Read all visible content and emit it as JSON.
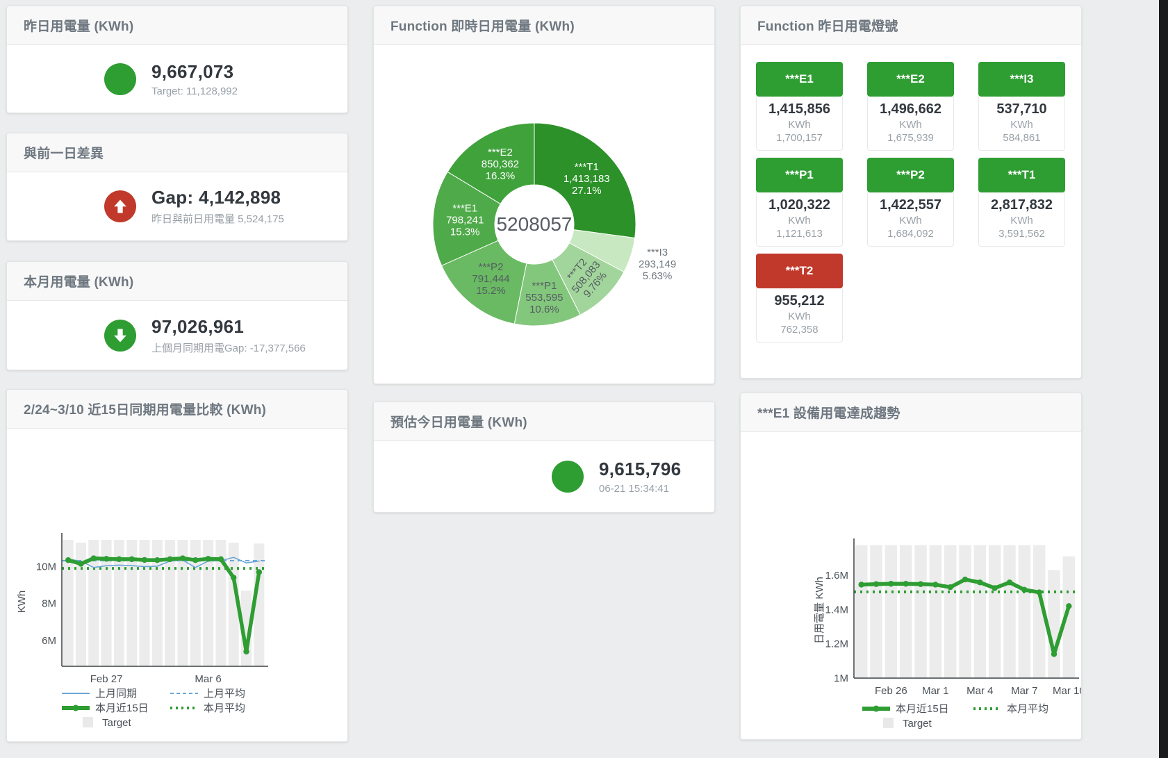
{
  "page": {
    "background": "#ecedee",
    "scrollbar_color": "#191b1d"
  },
  "colors": {
    "green": "#2e9d32",
    "red": "#c0392b",
    "blue": "#6ba7d7",
    "target_bar": "#ececec",
    "value_text": "#32383e",
    "sub_text": "#98a0a6"
  },
  "stats": {
    "yesterday": {
      "title": "昨日用電量 (KWh)",
      "value": "9,667,073",
      "subtitle": "Target: 11,128,992",
      "icon": "green-circle"
    },
    "diff": {
      "title": "與前一日差異",
      "value": "Gap: 4,142,898",
      "subtitle": "昨日與前日用電量 5,524,175",
      "icon": "red-arrow-up"
    },
    "month": {
      "title": "本月用電量 (KWh)",
      "value": "97,026,961",
      "subtitle": "上個月同期用電Gap: -17,377,566",
      "icon": "green-arrow-down"
    },
    "estimate": {
      "title": "預估今日用電量 (KWh)",
      "value": "9,615,796",
      "subtitle": "06-21 15:34:41",
      "icon": "green-circle"
    }
  },
  "lights": {
    "title": "Function 昨日用電燈號",
    "status_colors": {
      "green": "#2e9d32",
      "red": "#c0392b"
    },
    "tiles": [
      {
        "label": "***E1",
        "value": "1,415,856",
        "unit": "KWh",
        "target": "1,700,157",
        "status": "green"
      },
      {
        "label": "***E2",
        "value": "1,496,662",
        "unit": "KWh",
        "target": "1,675,939",
        "status": "green"
      },
      {
        "label": "***I3",
        "value": "537,710",
        "unit": "KWh",
        "target": "584,861",
        "status": "green"
      },
      {
        "label": "***P1",
        "value": "1,020,322",
        "unit": "KWh",
        "target": "1,121,613",
        "status": "green"
      },
      {
        "label": "***P2",
        "value": "1,422,557",
        "unit": "KWh",
        "target": "1,684,092",
        "status": "green"
      },
      {
        "label": "***T1",
        "value": "2,817,832",
        "unit": "KWh",
        "target": "3,591,562",
        "status": "green"
      },
      {
        "label": "***T2",
        "value": "955,212",
        "unit": "KWh",
        "target": "762,358",
        "status": "red"
      }
    ]
  },
  "chart_data": [
    {
      "type": "pie",
      "title": "Function 即時日用電量 (KWh)",
      "center_total": "5208057",
      "slices": [
        {
          "label": "***T1",
          "value": 1413183,
          "pct": "27.1%",
          "color": "#2b9128",
          "text_color": "#ffffff",
          "label_radius": 100
        },
        {
          "label": "***I3",
          "value": 293149,
          "pct": "5.63%",
          "color": "#c7e8c0",
          "text_color": "#70797f",
          "label_radius": 186
        },
        {
          "label": "***T2",
          "value": 508083,
          "pct": "9.76%",
          "color": "#a2d59b",
          "text_color": "#555d63",
          "label_radius": 106,
          "label_rotate": -50
        },
        {
          "label": "***P1",
          "value": 553595,
          "pct": "10.6%",
          "color": "#83c77c",
          "text_color": "#555d63",
          "label_radius": 106
        },
        {
          "label": "***P2",
          "value": 791444,
          "pct": "15.2%",
          "color": "#69ba62",
          "text_color": "#555d63",
          "label_radius": 100
        },
        {
          "label": "***E1",
          "value": 798241,
          "pct": "15.3%",
          "color": "#4faa49",
          "text_color": "#ffffff",
          "label_radius": 100
        },
        {
          "label": "***E2",
          "value": 850362,
          "pct": "16.3%",
          "color": "#40a23b",
          "text_color": "#ffffff",
          "label_radius": 100
        }
      ]
    },
    {
      "type": "bar+line",
      "title": "2/24~3/10 近15日同期用電量比較 (KWh)",
      "ylabel": "KWh",
      "ydomain": [
        4.6,
        11.6
      ],
      "yticks": [
        {
          "v": 6,
          "label": "6M"
        },
        {
          "v": 8,
          "label": "8M"
        },
        {
          "v": 10,
          "label": "10M"
        }
      ],
      "xticks": [
        {
          "index": 3,
          "label": "Feb 27"
        },
        {
          "index": 11,
          "label": "Mar 6"
        }
      ],
      "target_name": "Target",
      "target_bars": [
        11.45,
        11.3,
        11.45,
        11.45,
        11.45,
        11.45,
        11.45,
        11.45,
        11.45,
        11.45,
        11.45,
        11.45,
        11.45,
        11.3,
        8.7,
        11.25
      ],
      "series": [
        {
          "name": "上月同期",
          "color": "#6ba7d7",
          "width": 1.6,
          "markers": false,
          "values": [
            10.4,
            10.3,
            9.95,
            10.05,
            10.08,
            10.05,
            10.0,
            10.02,
            10.3,
            10.35,
            9.95,
            10.3,
            10.32,
            10.5,
            10.2,
            10.3
          ]
        },
        {
          "name": "本月近15日",
          "color": "#2e9d32",
          "width": 5.5,
          "markers": true,
          "values": [
            10.35,
            10.15,
            10.45,
            10.42,
            10.4,
            10.4,
            10.36,
            10.35,
            10.4,
            10.45,
            10.35,
            10.42,
            10.4,
            9.4,
            5.4,
            9.7
          ]
        }
      ],
      "avg_lines": [
        {
          "name": "上月平均",
          "value": 10.32,
          "color": "#6ba7d7",
          "style": "dash"
        },
        {
          "name": "本月平均",
          "value": 9.9,
          "color": "#2e9d32",
          "style": "dot"
        }
      ],
      "legend": [
        {
          "label": "上月同期",
          "swatch": "line",
          "color": "#6ba7d7"
        },
        {
          "label": "上月平均",
          "swatch": "dash",
          "color": "#6ba7d7"
        },
        {
          "label": "本月近15日",
          "swatch": "thick",
          "color": "#2e9d32"
        },
        {
          "label": "本月平均",
          "swatch": "dot",
          "color": "#2e9d32"
        },
        {
          "label": "Target",
          "swatch": "square",
          "color": "#e9e9e9"
        }
      ]
    },
    {
      "type": "bar+line",
      "title": "***E1 設備用電達成趨勢",
      "ylabel": "日用電量 KWh",
      "ydomain": [
        1.0,
        1.79
      ],
      "yticks": [
        {
          "v": 1,
          "label": "1M"
        },
        {
          "v": 1.2,
          "label": "1.2M"
        },
        {
          "v": 1.4,
          "label": "1.4M"
        },
        {
          "v": 1.6,
          "label": "1.6M"
        }
      ],
      "xticks": [
        {
          "index": 2,
          "label": "Feb 26"
        },
        {
          "index": 5,
          "label": "Mar 1"
        },
        {
          "index": 8,
          "label": "Mar 4"
        },
        {
          "index": 11,
          "label": "Mar 7"
        },
        {
          "index": 14,
          "label": "Mar 10"
        }
      ],
      "target_name": "Target",
      "target_bars": [
        1.775,
        1.775,
        1.775,
        1.775,
        1.775,
        1.775,
        1.775,
        1.775,
        1.775,
        1.775,
        1.775,
        1.775,
        1.775,
        1.63,
        1.71
      ],
      "series": [
        {
          "name": "本月近15日",
          "color": "#2e9d32",
          "width": 5.5,
          "markers": true,
          "values": [
            1.545,
            1.548,
            1.55,
            1.55,
            1.548,
            1.545,
            1.53,
            1.575,
            1.558,
            1.525,
            1.558,
            1.515,
            1.5,
            1.14,
            1.42
          ]
        }
      ],
      "avg_lines": [
        {
          "name": "本月平均",
          "value": 1.503,
          "color": "#2e9d32",
          "style": "dot"
        }
      ],
      "legend": [
        {
          "label": "本月近15日",
          "swatch": "thick",
          "color": "#2e9d32"
        },
        {
          "label": "本月平均",
          "swatch": "dot",
          "color": "#2e9d32"
        },
        {
          "label": "Target",
          "swatch": "square",
          "color": "#e9e9e9"
        }
      ]
    }
  ]
}
